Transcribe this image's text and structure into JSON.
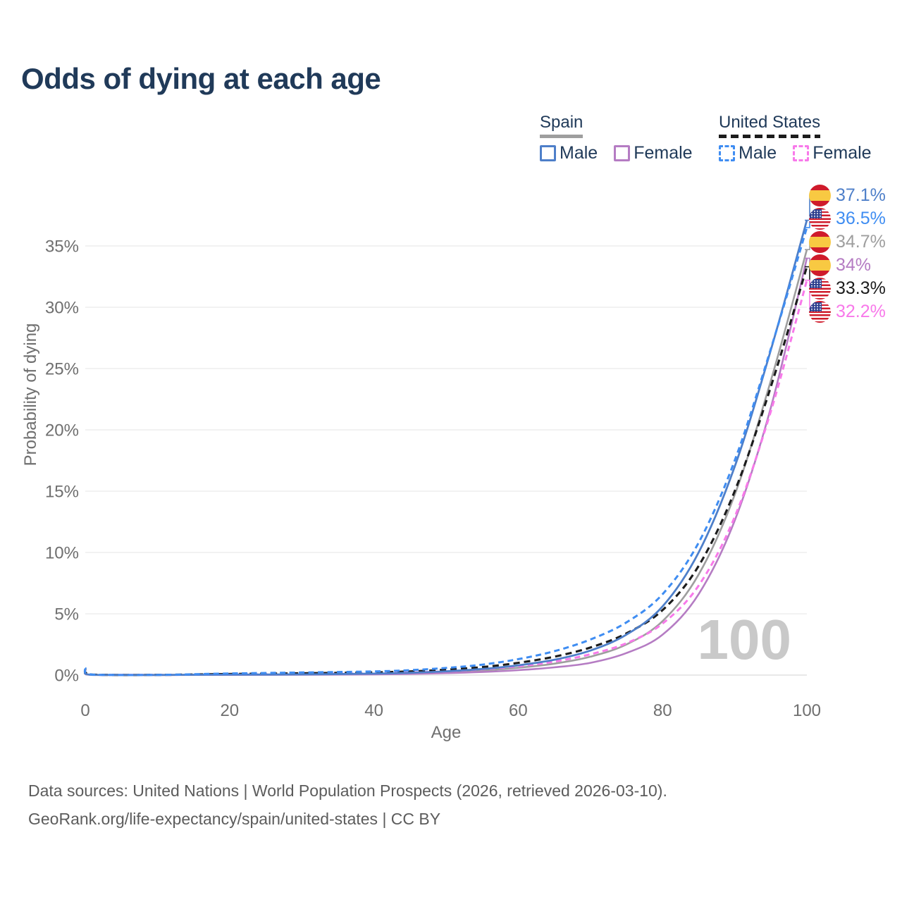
{
  "title": "Odds of dying at each age",
  "watermark": "100",
  "colors": {
    "spain_male": "#4e7fc9",
    "us_male": "#3f8df2",
    "spain_total": "#9e9e9e",
    "spain_female": "#b57cc3",
    "us_total": "#1c1c1c",
    "us_female": "#f879ea",
    "title_text": "#203a59",
    "axis_text": "#6f6f6f",
    "grid": "#eeeeee",
    "grid_zero": "#e0e0e0",
    "watermark_text": "#c9c9c9",
    "footer_text": "#5c5c5c",
    "flag_red": "#cf1b2b",
    "flag_yellow": "#f8c942",
    "flag_blue": "#2e3f8f"
  },
  "legend": {
    "spain": {
      "label": "Spain",
      "male_label": "Male",
      "female_label": "Female"
    },
    "us": {
      "label": "United States",
      "male_label": "Male",
      "female_label": "Female"
    }
  },
  "end_labels": [
    {
      "series": "spain_male",
      "flag": "spain",
      "value": "37.1%"
    },
    {
      "series": "us_male",
      "flag": "us",
      "value": "36.5%"
    },
    {
      "series": "spain_total",
      "flag": "spain",
      "value": "34.7%"
    },
    {
      "series": "spain_female",
      "flag": "spain",
      "value": "34%"
    },
    {
      "series": "us_total",
      "flag": "us",
      "value": "33.3%"
    },
    {
      "series": "us_female",
      "flag": "us",
      "value": "32.2%"
    }
  ],
  "footer": {
    "line1": "Data sources: United Nations | World Population Prospects (2026, retrieved 2026-03-10).",
    "line2": "GeoRank.org/life-expectancy/spain/united-states | CC BY"
  },
  "chart_data": {
    "type": "line",
    "title": "Odds of dying at each age",
    "xlabel": "Age",
    "ylabel": "Probability of dying",
    "xlim": [
      0,
      100
    ],
    "ylim": [
      0,
      39
    ],
    "grid": "horizontal-only",
    "legend_position": "top-right",
    "hover_age": 100,
    "x_ticks": [
      {
        "v": 0,
        "label": "0"
      },
      {
        "v": 20,
        "label": "20"
      },
      {
        "v": 40,
        "label": "40"
      },
      {
        "v": 60,
        "label": "60"
      },
      {
        "v": 80,
        "label": "80"
      },
      {
        "v": 100,
        "label": "100"
      }
    ],
    "y_ticks": [
      {
        "v": 0,
        "label": "0%"
      },
      {
        "v": 5,
        "label": "5%"
      },
      {
        "v": 10,
        "label": "10%"
      },
      {
        "v": 15,
        "label": "15%"
      },
      {
        "v": 20,
        "label": "20%"
      },
      {
        "v": 25,
        "label": "25%"
      },
      {
        "v": 30,
        "label": "30%"
      },
      {
        "v": 35,
        "label": "35%"
      }
    ],
    "x": [
      0,
      1,
      10,
      20,
      30,
      40,
      45,
      50,
      55,
      60,
      65,
      70,
      75,
      80,
      85,
      90,
      95,
      100
    ],
    "series": [
      {
        "id": "spain_total",
        "name": "Spain (both sexes)",
        "country": "Spain",
        "sex": "total",
        "line_style": "solid",
        "end_value_pct": 34.7,
        "values": [
          0.27,
          0.02,
          0.01,
          0.03,
          0.05,
          0.09,
          0.14,
          0.23,
          0.37,
          0.6,
          0.93,
          1.5,
          2.5,
          4.4,
          8.2,
          14.7,
          24.0,
          34.7
        ]
      },
      {
        "id": "spain_female",
        "name": "Spain Female",
        "country": "Spain",
        "sex": "female",
        "line_style": "solid",
        "end_value_pct": 34.0,
        "values": [
          0.25,
          0.02,
          0.01,
          0.02,
          0.03,
          0.06,
          0.1,
          0.16,
          0.25,
          0.4,
          0.63,
          1.0,
          1.8,
          3.3,
          6.6,
          12.6,
          21.8,
          34.0
        ]
      },
      {
        "id": "us_female",
        "name": "United States Female",
        "country": "United States",
        "sex": "female",
        "line_style": "dashed",
        "end_value_pct": 32.2,
        "values": [
          0.5,
          0.03,
          0.02,
          0.05,
          0.09,
          0.15,
          0.21,
          0.31,
          0.47,
          0.72,
          1.1,
          1.7,
          2.6,
          4.2,
          7.3,
          12.9,
          21.5,
          32.2
        ]
      },
      {
        "id": "us_total",
        "name": "United States (both sexes)",
        "country": "United States",
        "sex": "total",
        "line_style": "dashed",
        "end_value_pct": 33.3,
        "values": [
          0.55,
          0.04,
          0.02,
          0.09,
          0.15,
          0.22,
          0.3,
          0.44,
          0.65,
          1.0,
          1.5,
          2.25,
          3.4,
          5.3,
          8.9,
          15.0,
          23.5,
          33.3
        ]
      },
      {
        "id": "spain_male",
        "name": "Spain Male",
        "country": "Spain",
        "sex": "male",
        "line_style": "solid",
        "end_value_pct": 37.1,
        "values": [
          0.3,
          0.02,
          0.01,
          0.04,
          0.06,
          0.12,
          0.19,
          0.31,
          0.5,
          0.8,
          1.25,
          2.0,
          3.3,
          5.6,
          10.0,
          17.0,
          26.5,
          37.1
        ]
      },
      {
        "id": "us_male",
        "name": "United States Male",
        "country": "United States",
        "sex": "male",
        "line_style": "dashed",
        "end_value_pct": 36.5,
        "values": [
          0.6,
          0.04,
          0.02,
          0.13,
          0.21,
          0.3,
          0.4,
          0.58,
          0.85,
          1.3,
          1.95,
          2.9,
          4.3,
          6.6,
          10.8,
          17.5,
          26.6,
          36.5
        ]
      }
    ]
  }
}
